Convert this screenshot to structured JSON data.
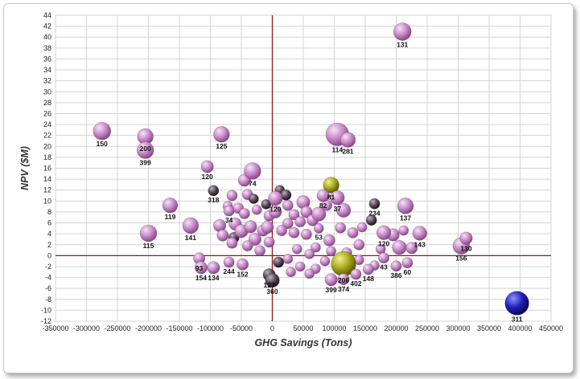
{
  "chart_data": {
    "type": "scatter",
    "subtype": "bubble",
    "title": "",
    "xlabel": "GHG Savings (Tons)",
    "ylabel": "NPV ($M)",
    "xlim": [
      -350000,
      450000
    ],
    "ylim": [
      -12,
      44
    ],
    "x_ticks": [
      -350000,
      -300000,
      -250000,
      -200000,
      -150000,
      -100000,
      -50000,
      0,
      50000,
      100000,
      150000,
      200000,
      250000,
      300000,
      350000,
      400000,
      450000
    ],
    "y_ticks": [
      -12,
      -10,
      -8,
      -6,
      -4,
      -2,
      0,
      2,
      4,
      6,
      8,
      10,
      12,
      14,
      16,
      18,
      20,
      22,
      24,
      26,
      28,
      30,
      32,
      34,
      36,
      38,
      40,
      42,
      44
    ],
    "grid": true,
    "reference_lines": {
      "x": 0,
      "y": 0,
      "color": "#8b1a1a"
    },
    "colors": {
      "purple": "#c07ac0",
      "dark": "#4a3a4a",
      "olive": "#9a9a10",
      "blue": "#1a1aa8"
    },
    "labeled_points": [
      {
        "label": "131",
        "x": 210000,
        "y": 41,
        "r": 1.0,
        "color": "purple"
      },
      {
        "label": "150",
        "x": -275000,
        "y": 22.8,
        "r": 1.0,
        "color": "purple"
      },
      {
        "label": "200",
        "x": -205000,
        "y": 21.8,
        "r": 0.9,
        "color": "purple"
      },
      {
        "label": "399",
        "x": -205000,
        "y": 19.3,
        "r": 0.95,
        "color": "purple"
      },
      {
        "label": "125",
        "x": -82000,
        "y": 22.2,
        "r": 0.9,
        "color": "purple"
      },
      {
        "label": "114",
        "x": 105000,
        "y": 22.2,
        "r": 1.3,
        "color": "purple"
      },
      {
        "label": "281",
        "x": 122000,
        "y": 21.2,
        "r": 0.85,
        "color": "purple"
      },
      {
        "label": "120",
        "x": -105000,
        "y": 16.3,
        "r": 0.7,
        "color": "purple"
      },
      {
        "label": "74",
        "x": -32000,
        "y": 15.5,
        "r": 0.95,
        "color": "purple"
      },
      {
        "label": "81",
        "x": 95000,
        "y": 12.9,
        "r": 0.9,
        "color": "olive"
      },
      {
        "label": "318",
        "x": -95000,
        "y": 11.9,
        "r": 0.6,
        "color": "dark"
      },
      {
        "label": "82",
        "x": 82000,
        "y": 11,
        "r": 0.7,
        "color": "purple"
      },
      {
        "label": "37",
        "x": 105000,
        "y": 10.6,
        "r": 0.8,
        "color": "purple"
      },
      {
        "label": "119",
        "x": -165000,
        "y": 9.2,
        "r": 0.85,
        "color": "purple"
      },
      {
        "label": "137",
        "x": 215000,
        "y": 9.1,
        "r": 0.9,
        "color": "purple"
      },
      {
        "label": "234",
        "x": 165000,
        "y": 9.5,
        "r": 0.6,
        "color": "dark"
      },
      {
        "label": "120",
        "x": 5000,
        "y": 10.5,
        "r": 0.8,
        "color": "purple"
      },
      {
        "label": "141",
        "x": -132000,
        "y": 5.5,
        "r": 0.9,
        "color": "purple"
      },
      {
        "label": "115",
        "x": -200000,
        "y": 4.1,
        "r": 0.95,
        "color": "purple"
      },
      {
        "label": "143",
        "x": 238000,
        "y": 4.1,
        "r": 0.8,
        "color": "purple"
      },
      {
        "label": "156",
        "x": 305000,
        "y": 1.8,
        "r": 0.95,
        "color": "purple"
      },
      {
        "label": "130",
        "x": 313000,
        "y": 3.2,
        "r": 0.7,
        "color": "purple"
      },
      {
        "label": "120",
        "x": 180000,
        "y": 4.2,
        "r": 0.8,
        "color": "purple"
      },
      {
        "label": "34",
        "x": -70000,
        "y": 8.2,
        "r": 0.6,
        "color": "purple"
      },
      {
        "label": "53",
        "x": 75000,
        "y": 5,
        "r": 0.55,
        "color": "purple"
      },
      {
        "label": "206",
        "x": 115000,
        "y": -1.5,
        "r": 1.4,
        "color": "olive"
      },
      {
        "label": "43",
        "x": 180000,
        "y": -0.4,
        "r": 0.6,
        "color": "purple"
      },
      {
        "label": "60",
        "x": 218000,
        "y": -1.3,
        "r": 0.6,
        "color": "purple"
      },
      {
        "label": "386",
        "x": 200000,
        "y": -1.9,
        "r": 0.6,
        "color": "purple"
      },
      {
        "label": "148",
        "x": 155000,
        "y": -2.5,
        "r": 0.6,
        "color": "purple"
      },
      {
        "label": "93",
        "x": -118000,
        "y": -0.5,
        "r": 0.65,
        "color": "purple"
      },
      {
        "label": "154",
        "x": -115000,
        "y": -2.2,
        "r": 0.7,
        "color": "purple"
      },
      {
        "label": "134",
        "x": -95000,
        "y": -2.2,
        "r": 0.7,
        "color": "purple"
      },
      {
        "label": "244",
        "x": -70000,
        "y": -1.2,
        "r": 0.6,
        "color": "purple"
      },
      {
        "label": "152",
        "x": -48000,
        "y": -1.6,
        "r": 0.65,
        "color": "purple"
      },
      {
        "label": "127",
        "x": -5000,
        "y": -3.5,
        "r": 0.7,
        "color": "dark"
      },
      {
        "label": "360",
        "x": 0,
        "y": -4.5,
        "r": 0.8,
        "color": "dark"
      },
      {
        "label": "399",
        "x": 95000,
        "y": -4.4,
        "r": 0.7,
        "color": "purple"
      },
      {
        "label": "374",
        "x": 115000,
        "y": -4.3,
        "r": 0.65,
        "color": "purple"
      },
      {
        "label": "402",
        "x": 135000,
        "y": -3.4,
        "r": 0.6,
        "color": "purple"
      },
      {
        "label": "311",
        "x": 395000,
        "y": -8.7,
        "r": 1.35,
        "color": "blue"
      }
    ],
    "unlabeled_points": [
      {
        "x": -45000,
        "y": 13.8,
        "r": 0.7,
        "color": "purple"
      },
      {
        "x": -40000,
        "y": 11.2,
        "r": 0.6,
        "color": "purple"
      },
      {
        "x": -30000,
        "y": 10.4,
        "r": 0.55,
        "color": "dark"
      },
      {
        "x": -65000,
        "y": 11.0,
        "r": 0.6,
        "color": "purple"
      },
      {
        "x": -72000,
        "y": 9.1,
        "r": 0.55,
        "color": "purple"
      },
      {
        "x": -55000,
        "y": 8.7,
        "r": 0.6,
        "color": "purple"
      },
      {
        "x": -45000,
        "y": 7.7,
        "r": 0.6,
        "color": "purple"
      },
      {
        "x": -25000,
        "y": 8.4,
        "r": 0.55,
        "color": "purple"
      },
      {
        "x": -10000,
        "y": 9.4,
        "r": 0.55,
        "color": "dark"
      },
      {
        "x": -5000,
        "y": 7.3,
        "r": 0.6,
        "color": "purple"
      },
      {
        "x": -60000,
        "y": 5.8,
        "r": 0.7,
        "color": "purple"
      },
      {
        "x": -85000,
        "y": 5.5,
        "r": 0.7,
        "color": "purple"
      },
      {
        "x": -80000,
        "y": 3.7,
        "r": 0.65,
        "color": "purple"
      },
      {
        "x": -62000,
        "y": 3.3,
        "r": 0.6,
        "color": "dark"
      },
      {
        "x": -50000,
        "y": 4.5,
        "r": 0.75,
        "color": "purple"
      },
      {
        "x": -35000,
        "y": 5.3,
        "r": 0.7,
        "color": "purple"
      },
      {
        "x": -28000,
        "y": 3.0,
        "r": 0.7,
        "color": "purple"
      },
      {
        "x": -15000,
        "y": 4.6,
        "r": 0.65,
        "color": "purple"
      },
      {
        "x": -40000,
        "y": 1.8,
        "r": 0.6,
        "color": "purple"
      },
      {
        "x": -65000,
        "y": 2.3,
        "r": 0.6,
        "color": "purple"
      },
      {
        "x": -20000,
        "y": 0.9,
        "r": 0.6,
        "color": "purple"
      },
      {
        "x": -5000,
        "y": 2.5,
        "r": 0.6,
        "color": "purple"
      },
      {
        "x": 12000,
        "y": 12.0,
        "r": 0.55,
        "color": "dark"
      },
      {
        "x": 25000,
        "y": 9.2,
        "r": 0.6,
        "color": "purple"
      },
      {
        "x": 35000,
        "y": 7.5,
        "r": 0.6,
        "color": "purple"
      },
      {
        "x": 50000,
        "y": 9.8,
        "r": 0.75,
        "color": "purple"
      },
      {
        "x": 55000,
        "y": 8.0,
        "r": 0.65,
        "color": "purple"
      },
      {
        "x": 65000,
        "y": 6.5,
        "r": 0.65,
        "color": "purple"
      },
      {
        "x": 45000,
        "y": 6.2,
        "r": 0.6,
        "color": "purple"
      },
      {
        "x": 25000,
        "y": 5.9,
        "r": 0.6,
        "color": "purple"
      },
      {
        "x": 15000,
        "y": 4.6,
        "r": 0.6,
        "color": "purple"
      },
      {
        "x": 35000,
        "y": 4.2,
        "r": 0.6,
        "color": "purple"
      },
      {
        "x": 55000,
        "y": 3.9,
        "r": 0.6,
        "color": "purple"
      },
      {
        "x": 75000,
        "y": 7.6,
        "r": 0.8,
        "color": "purple"
      },
      {
        "x": 88000,
        "y": 9.2,
        "r": 0.6,
        "color": "purple"
      },
      {
        "x": 115000,
        "y": 8.3,
        "r": 0.8,
        "color": "purple"
      },
      {
        "x": 92000,
        "y": 2.8,
        "r": 0.65,
        "color": "purple"
      },
      {
        "x": 110000,
        "y": 5.1,
        "r": 0.6,
        "color": "purple"
      },
      {
        "x": 130000,
        "y": 4.2,
        "r": 0.6,
        "color": "purple"
      },
      {
        "x": 145000,
        "y": 5.2,
        "r": 0.55,
        "color": "purple"
      },
      {
        "x": 140000,
        "y": 2.0,
        "r": 0.6,
        "color": "purple"
      },
      {
        "x": 160000,
        "y": 6.5,
        "r": 0.6,
        "color": "dark"
      },
      {
        "x": 175000,
        "y": 1.2,
        "r": 0.55,
        "color": "purple"
      },
      {
        "x": 195000,
        "y": 3.8,
        "r": 0.7,
        "color": "purple"
      },
      {
        "x": 212000,
        "y": 4.6,
        "r": 0.55,
        "color": "purple"
      },
      {
        "x": 205000,
        "y": 1.5,
        "r": 0.8,
        "color": "purple"
      },
      {
        "x": 225000,
        "y": 1.4,
        "r": 0.65,
        "color": "purple"
      },
      {
        "x": 120000,
        "y": 0.5,
        "r": 0.6,
        "color": "purple"
      },
      {
        "x": 95000,
        "y": 0.8,
        "r": 0.55,
        "color": "purple"
      },
      {
        "x": 70000,
        "y": 1.5,
        "r": 0.55,
        "color": "purple"
      },
      {
        "x": 60000,
        "y": 0.3,
        "r": 0.55,
        "color": "purple"
      },
      {
        "x": 40000,
        "y": 1.2,
        "r": 0.55,
        "color": "purple"
      },
      {
        "x": 25000,
        "y": -0.6,
        "r": 0.55,
        "color": "purple"
      },
      {
        "x": 10000,
        "y": -1.2,
        "r": 0.6,
        "color": "dark"
      },
      {
        "x": 45000,
        "y": -2.0,
        "r": 0.55,
        "color": "purple"
      },
      {
        "x": 70000,
        "y": -2.4,
        "r": 0.55,
        "color": "purple"
      },
      {
        "x": 85000,
        "y": -1.0,
        "r": 0.55,
        "color": "purple"
      },
      {
        "x": 140000,
        "y": -0.8,
        "r": 0.55,
        "color": "purple"
      },
      {
        "x": 165000,
        "y": -1.8,
        "r": 0.55,
        "color": "purple"
      },
      {
        "x": 60000,
        "y": -3.3,
        "r": 0.55,
        "color": "purple"
      },
      {
        "x": 30000,
        "y": -3.0,
        "r": 0.55,
        "color": "purple"
      },
      {
        "x": -8000,
        "y": 5.2,
        "r": 0.7,
        "color": "purple"
      },
      {
        "x": 5000,
        "y": 8.0,
        "r": 0.7,
        "color": "purple"
      },
      {
        "x": 22000,
        "y": 11.1,
        "r": 0.6,
        "color": "dark"
      }
    ]
  }
}
